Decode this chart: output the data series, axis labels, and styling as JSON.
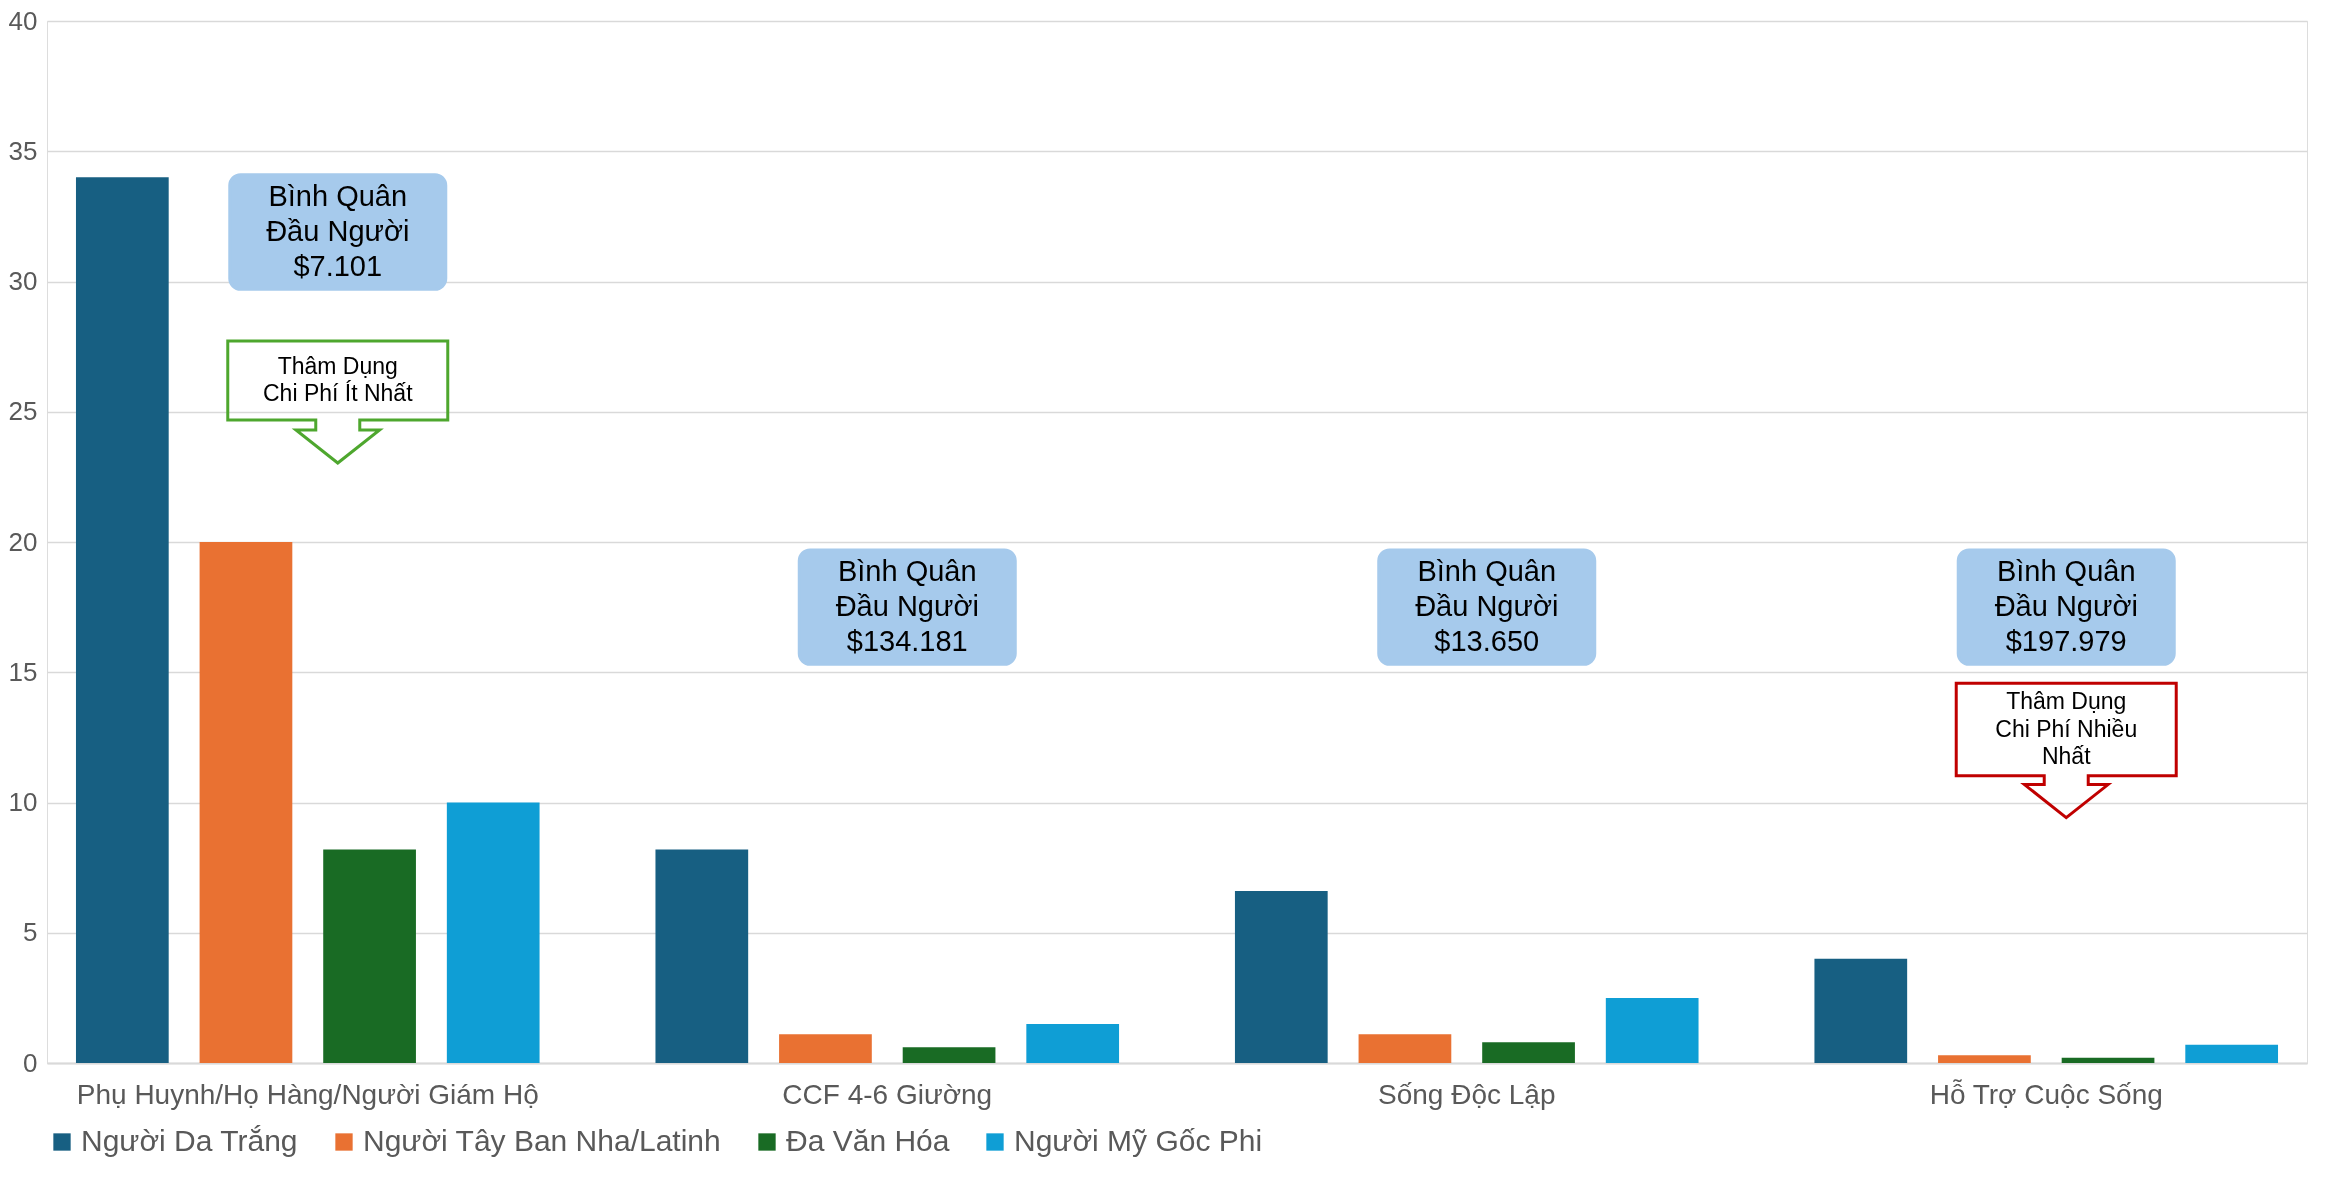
{
  "chart_data": {
    "type": "bar",
    "categories": [
      "Phụ Huynh/Họ Hàng/Người Giám Hộ",
      "CCF 4-6 Giường",
      "Sống Độc Lập",
      "Hỗ Trợ Cuộc Sống"
    ],
    "series": [
      {
        "name": "Người Da Trắng",
        "color": "#175f82",
        "values": [
          34,
          8.2,
          6.6,
          4.0
        ]
      },
      {
        "name": "Người Tây Ban Nha/Latinh",
        "color": "#e97132",
        "values": [
          20,
          1.1,
          1.1,
          0.3
        ]
      },
      {
        "name": "Đa Văn Hóa",
        "color": "#196b24",
        "values": [
          8.2,
          0.6,
          0.8,
          0.2
        ]
      },
      {
        "name": "Người Mỹ Gốc Phi",
        "color": "#0f9ed5",
        "values": [
          10,
          1.5,
          2.5,
          0.7
        ]
      }
    ],
    "ylim": [
      0,
      40
    ],
    "yticks": [
      0,
      5,
      10,
      15,
      20,
      25,
      30,
      35,
      40
    ],
    "grid": "y",
    "legend": "bottom",
    "annotations": [
      "Bình Quân\nĐầu Người\n$7.101",
      "Bình Quân\nĐầu Người\n$134.181",
      "Bình Quân\nĐầu Người\n$13.650",
      "Bình Quân\nĐầu Người\n$197.979",
      "Thâm Dụng\nChi Phí Ít Nhất",
      "Thâm Dụng\nChi Phí Nhiều\nNhất"
    ]
  }
}
